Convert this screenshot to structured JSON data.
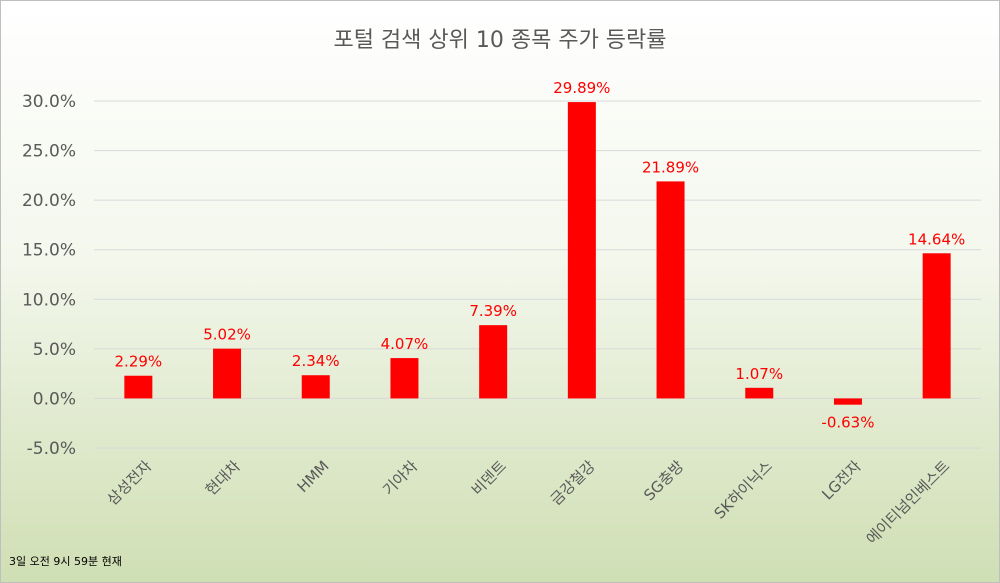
{
  "chart_data": {
    "type": "bar",
    "title": "포털 검색 상위 10 종목 주가 등락률",
    "categories": [
      "삼성전자",
      "현대차",
      "HMM",
      "기아차",
      "비덴트",
      "금강철강",
      "SG충방",
      "SK하이닉스",
      "LG전자",
      "에이티넘인베스트"
    ],
    "values": [
      2.29,
      5.02,
      2.34,
      4.07,
      7.39,
      29.89,
      21.89,
      1.07,
      -0.63,
      14.64
    ],
    "data_labels": [
      "2.29%",
      "5.02%",
      "2.34%",
      "4.07%",
      "7.39%",
      "29.89%",
      "21.89%",
      "1.07%",
      "-0.63%",
      "14.64%"
    ],
    "yticks": [
      -5,
      0,
      5,
      10,
      15,
      20,
      25,
      30
    ],
    "ytick_labels": [
      "-5.0%",
      "0.0%",
      "5.0%",
      "10.0%",
      "15.0%",
      "20.0%",
      "25.0%",
      "30.0%"
    ],
    "ylim": [
      -5,
      30
    ],
    "grid": true,
    "bar_color": "#ff0000",
    "label_color": "#ff0000",
    "xlabel": "",
    "ylabel": "",
    "note": "3일 오전 9시 59분 현재"
  }
}
